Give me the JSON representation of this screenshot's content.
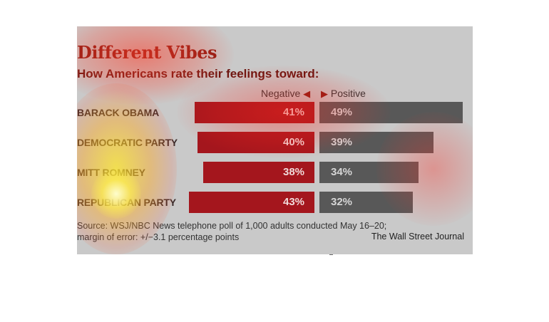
{
  "chart_data": {
    "type": "bar",
    "title": "Different Vibes",
    "subtitle": "How Americans rate their feelings toward:",
    "legend": {
      "negative": "Negative",
      "positive": "Positive"
    },
    "categories": [
      "BARACK OBAMA",
      "DEMOCRATIC PARTY",
      "MITT ROMNEY",
      "REPUBLICAN PARTY"
    ],
    "series": [
      {
        "name": "Negative",
        "values": [
          41,
          40,
          38,
          43
        ],
        "labels": [
          "41%",
          "40%",
          "38%",
          "43%"
        ],
        "color": "#a4161d"
      },
      {
        "name": "Positive",
        "values": [
          49,
          39,
          34,
          32
        ],
        "labels": [
          "49%",
          "39%",
          "34%",
          "32%"
        ],
        "color": "#585858"
      }
    ],
    "source": "Source: WSJ/NBC News telephone poll of 1,000 adults conducted May 16–20; margin of error: +/−3.1 percentage points",
    "source_line1": "Source: WSJ/NBC News telephone poll of 1,000 adults conducted May 16–20;",
    "source_line2": "margin of error: +/−3.1 percentage points",
    "credit": "The Wall Street Journal",
    "colors": {
      "background": "#c9c9c9",
      "title": "#8b1a12",
      "negative_bar": "#a4161d",
      "positive_bar": "#585858"
    }
  }
}
